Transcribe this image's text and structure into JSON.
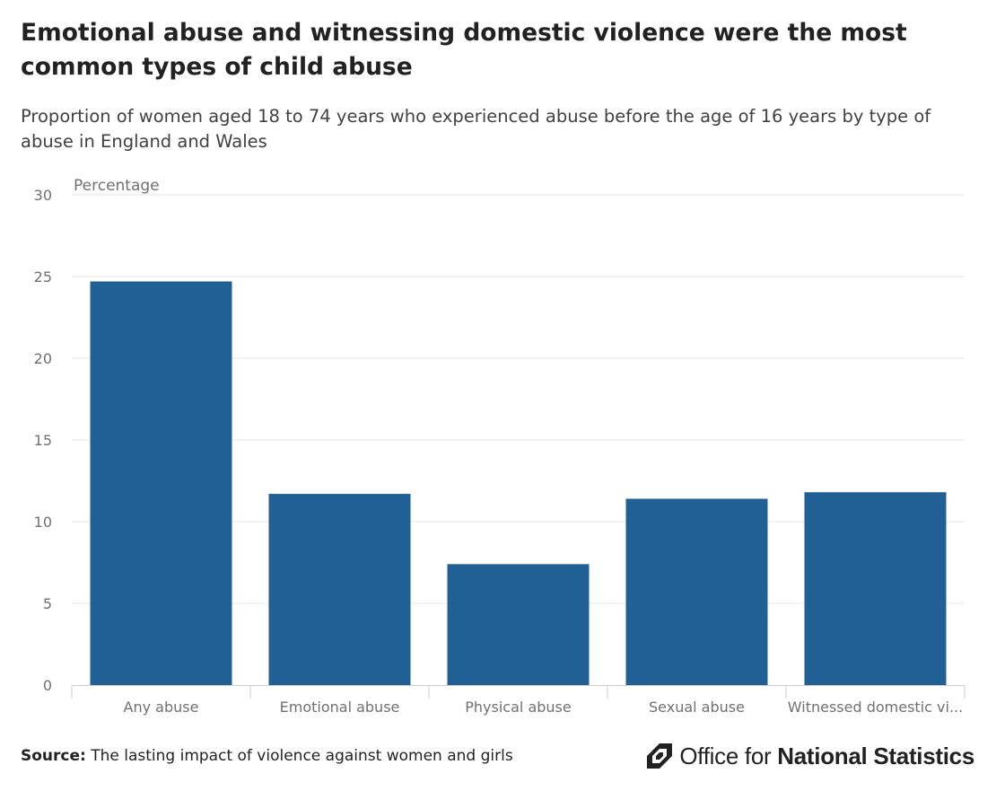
{
  "header": {
    "title": "Emotional abuse and witnessing domestic violence were the most common types of child abuse",
    "subtitle": "Proportion of women aged 18 to 74 years who experienced abuse before the age of 16 years by type of abuse in England and Wales"
  },
  "chart_data": {
    "type": "bar",
    "ylabel": "Percentage",
    "xlabel": "",
    "categories": [
      "Any abuse",
      "Emotional abuse",
      "Physical abuse",
      "Sexual abuse",
      "Witnessed domestic vi..."
    ],
    "values": [
      24.7,
      11.7,
      7.4,
      11.4,
      11.8
    ],
    "ylim": [
      0,
      30
    ],
    "yticks": [
      0,
      5,
      10,
      15,
      20,
      25,
      30
    ],
    "grid": true,
    "colors": {
      "bar": "#206095",
      "grid": "#e6e6e6",
      "axis": "#cccccc",
      "tick_text": "#707070"
    }
  },
  "footer": {
    "source_label": "Source:",
    "source_text": "The lasting impact of violence against women and girls",
    "brand_regular": "Office for",
    "brand_bold": "National Statistics",
    "brand_icon": "ons-logo-icon"
  }
}
